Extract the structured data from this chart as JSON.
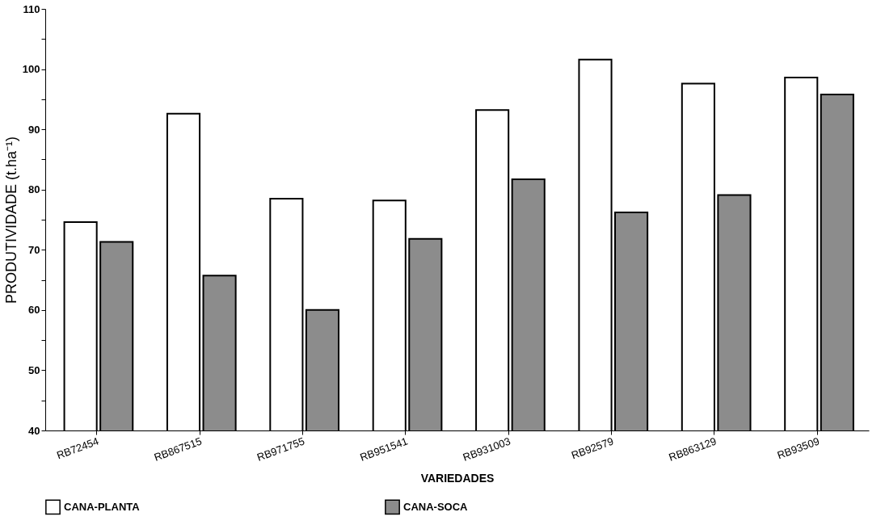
{
  "chart_data": {
    "type": "bar",
    "xlabel": "VARIEDADES",
    "ylabel": "PRODUTIVIDADE (t.ha⁻¹)",
    "categories": [
      "RB72454",
      "RB867515",
      "RB971755",
      "RB951541",
      "RB931003",
      "RB92579",
      "RB863129",
      "RB93509"
    ],
    "series": [
      {
        "name": "CANA-PLANTA",
        "color": "#ffffff",
        "values": [
          74.6,
          92.6,
          78.5,
          78.2,
          93.2,
          101.6,
          97.6,
          98.6
        ]
      },
      {
        "name": "CANA-SOCA",
        "color": "#8c8c8c",
        "values": [
          71.3,
          65.7,
          60.0,
          71.8,
          81.7,
          76.2,
          79.1,
          95.8
        ]
      }
    ],
    "ylim": [
      40,
      110
    ],
    "yticks": [
      40,
      {
        "value": 45,
        "label": null
      },
      50,
      {
        "value": 55,
        "label": null
      },
      60,
      {
        "value": 65,
        "label": null
      },
      70,
      {
        "value": 75,
        "label": null
      },
      80,
      {
        "value": 85,
        "label": null
      },
      90,
      {
        "value": 95,
        "label": null
      },
      100,
      {
        "value": 105,
        "label": null
      },
      110
    ],
    "grid": false,
    "legend": "bottom"
  }
}
